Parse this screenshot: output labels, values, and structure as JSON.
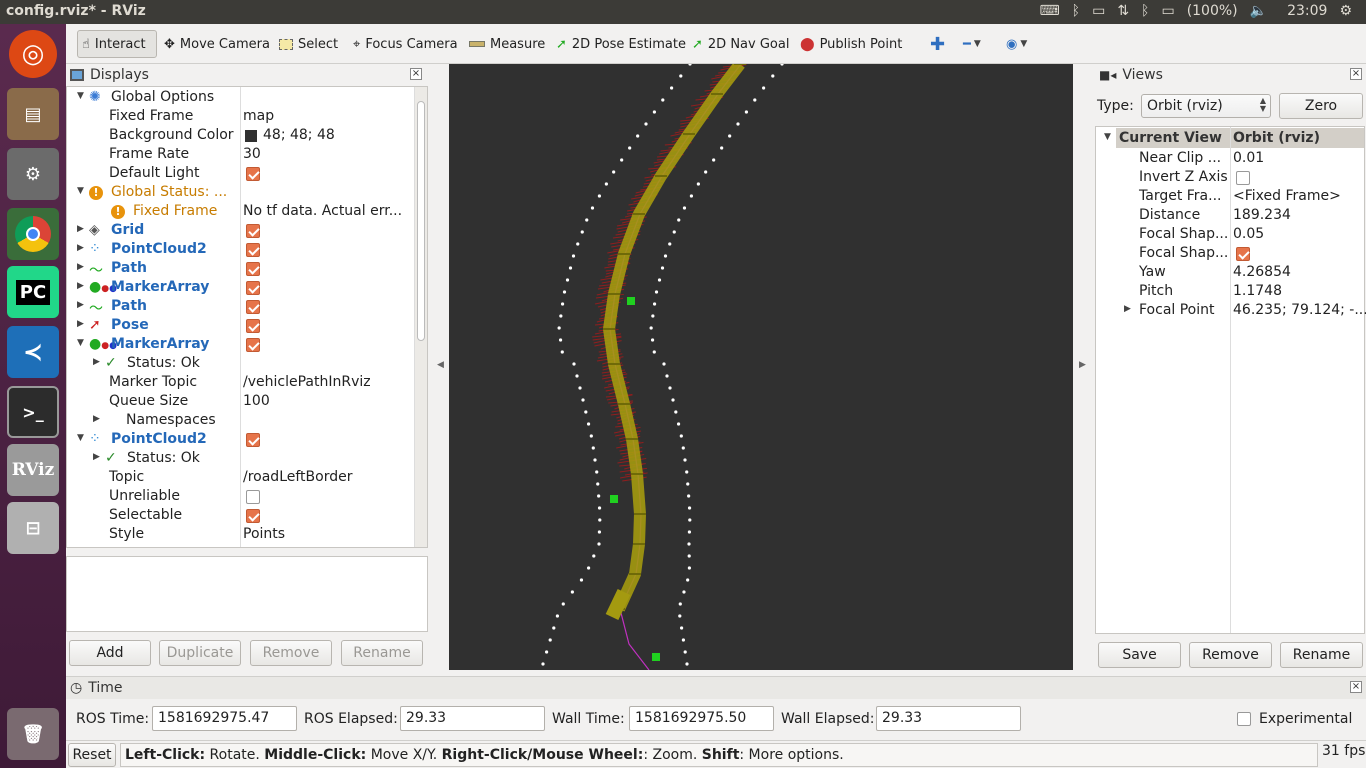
{
  "window": {
    "title": "config.rviz* - RViz"
  },
  "tray": {
    "battery": "(100%)",
    "time": "23:09"
  },
  "toolbar": {
    "interact": "Interact",
    "move_camera": "Move Camera",
    "select": "Select",
    "focus_camera": "Focus Camera",
    "measure": "Measure",
    "pose_estimate": "2D Pose Estimate",
    "nav_goal": "2D Nav Goal",
    "publish_point": "Publish Point"
  },
  "launcher": {
    "pycharm": "PC",
    "rviz": "RViz"
  },
  "displays": {
    "title": "Displays",
    "rows": [
      {
        "label": "Global Options",
        "value": ""
      },
      {
        "label": "Fixed Frame",
        "value": "map"
      },
      {
        "label": "Background Color",
        "value": "48; 48; 48"
      },
      {
        "label": "Frame Rate",
        "value": "30"
      },
      {
        "label": "Default Light",
        "value": ""
      },
      {
        "label": "Global Status: ...",
        "value": ""
      },
      {
        "label": "Fixed Frame",
        "value": "No tf data.  Actual err..."
      },
      {
        "label": "Grid",
        "value": ""
      },
      {
        "label": "PointCloud2",
        "value": ""
      },
      {
        "label": "Path",
        "value": ""
      },
      {
        "label": "MarkerArray",
        "value": ""
      },
      {
        "label": "Path",
        "value": ""
      },
      {
        "label": "Pose",
        "value": ""
      },
      {
        "label": "MarkerArray",
        "value": ""
      },
      {
        "label": "Status: Ok",
        "value": ""
      },
      {
        "label": "Marker Topic",
        "value": "/vehiclePathInRviz"
      },
      {
        "label": "Queue Size",
        "value": "100"
      },
      {
        "label": "Namespaces",
        "value": ""
      },
      {
        "label": "PointCloud2",
        "value": ""
      },
      {
        "label": "Status: Ok",
        "value": ""
      },
      {
        "label": "Topic",
        "value": "/roadLeftBorder"
      },
      {
        "label": "Unreliable",
        "value": ""
      },
      {
        "label": "Selectable",
        "value": ""
      },
      {
        "label": "Style",
        "value": "Points"
      }
    ],
    "buttons": {
      "add": "Add",
      "duplicate": "Duplicate",
      "remove": "Remove",
      "rename": "Rename"
    }
  },
  "views": {
    "title": "Views",
    "type_label": "Type:",
    "type_value": "Orbit (rviz)",
    "zero": "Zero",
    "header_name": "Current View",
    "header_value": "Orbit (rviz)",
    "rows": [
      {
        "label": "Near Clip ...",
        "value": "0.01"
      },
      {
        "label": "Invert Z Axis",
        "value": ""
      },
      {
        "label": "Target Fra...",
        "value": "<Fixed Frame>"
      },
      {
        "label": "Distance",
        "value": "189.234"
      },
      {
        "label": "Focal Shap...",
        "value": "0.05"
      },
      {
        "label": "Focal Shap...",
        "value": ""
      },
      {
        "label": "Yaw",
        "value": "4.26854"
      },
      {
        "label": "Pitch",
        "value": "1.1748"
      },
      {
        "label": "Focal Point",
        "value": "46.235; 79.124; -..."
      }
    ],
    "buttons": {
      "save": "Save",
      "remove": "Remove",
      "rename": "Rename"
    }
  },
  "time": {
    "title": "Time",
    "ros_time_label": "ROS Time:",
    "ros_time": "1581692975.47",
    "ros_elapsed_label": "ROS Elapsed:",
    "ros_elapsed": "29.33",
    "wall_time_label": "Wall Time:",
    "wall_time": "1581692975.50",
    "wall_elapsed_label": "Wall Elapsed:",
    "wall_elapsed": "29.33",
    "experimental": "Experimental"
  },
  "status": {
    "reset": "Reset",
    "k1": "Left-Click:",
    "t1": " Rotate. ",
    "k2": "Middle-Click:",
    "t2": " Move X/Y. ",
    "k3": "Right-Click/Mouse Wheel:",
    "t3": ": Zoom. ",
    "k4": "Shift",
    "t4": ": More options.",
    "fps": "31 fps"
  },
  "colors": {
    "viewport_bg": "#303030",
    "path_yellow": "#a49a10",
    "arrows_red": "#b01818",
    "border_points": "#ffffff",
    "markers_green": "#20d020",
    "trajectory": "#c030c0"
  }
}
